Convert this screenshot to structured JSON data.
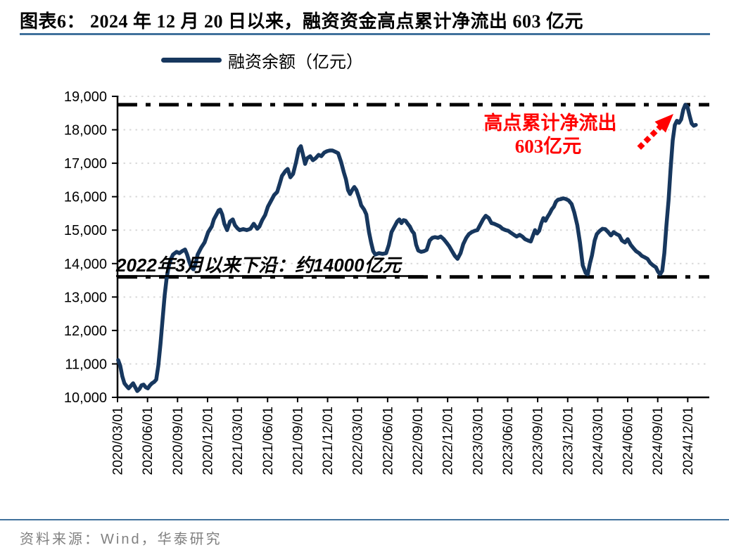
{
  "title": "图表6：  2024 年 12 月 20 日以来，融资资金高点累计净流出 603 亿元",
  "legend": {
    "label": "融资余额（亿元）"
  },
  "annotations": {
    "high_point": {
      "line1": "高点累计净流出",
      "line2": "603亿元"
    },
    "lower_band": {
      "text": "2022年3月以来下沿：约14000亿元"
    }
  },
  "source": {
    "text": "资料来源：Wind，华泰研究"
  },
  "colors": {
    "line": "#17375E",
    "rule": "#41719C",
    "annotation_red": "#FF0000",
    "grid": "#D9D9D9",
    "axis": "#000000",
    "reference_line": "#000000",
    "source_text": "#808080"
  },
  "chart_data": {
    "type": "line",
    "title": "2024年12月20日以来，融资资金高点累计净流出603亿元",
    "series_name": "融资余额（亿元）",
    "unit": "亿元",
    "y_axis": {
      "min": 10000,
      "max": 19000,
      "step": 1000,
      "ticks": [
        10000,
        11000,
        12000,
        13000,
        14000,
        15000,
        16000,
        17000,
        18000,
        19000
      ],
      "tick_labels": [
        "10,000",
        "11,000",
        "12,000",
        "13,000",
        "14,000",
        "15,000",
        "16,000",
        "17,000",
        "18,000",
        "19,000"
      ]
    },
    "x_axis": {
      "tick_labels": [
        "2020/03/01",
        "2020/06/01",
        "2020/09/01",
        "2020/12/01",
        "2021/03/01",
        "2021/06/01",
        "2021/09/01",
        "2021/12/01",
        "2022/03/01",
        "2022/06/01",
        "2022/09/01",
        "2022/12/01",
        "2023/03/01",
        "2023/06/01",
        "2023/09/01",
        "2023/12/01",
        "2024/03/01",
        "2024/06/01",
        "2024/09/01",
        "2024/12/01"
      ]
    },
    "reference_lines": [
      {
        "value": 18750,
        "style": "dash-dot",
        "meaning": "2024年12月20日高点"
      },
      {
        "value": 13600,
        "style": "dash-dot",
        "meaning": "2022年3月以来下沿：约14000亿元"
      }
    ],
    "grid": "horizontal-dotted",
    "legend_position": "top-left",
    "points_format": "[quarters since 2020/03/01, 融资余额(亿元)]",
    "points": [
      [
        0.02,
        11115
      ],
      [
        0.09,
        10950
      ],
      [
        0.16,
        10630
      ],
      [
        0.23,
        10420
      ],
      [
        0.3,
        10340
      ],
      [
        0.37,
        10270
      ],
      [
        0.44,
        10340
      ],
      [
        0.52,
        10420
      ],
      [
        0.59,
        10300
      ],
      [
        0.66,
        10190
      ],
      [
        0.73,
        10250
      ],
      [
        0.8,
        10360
      ],
      [
        0.87,
        10380
      ],
      [
        0.94,
        10300
      ],
      [
        1.01,
        10270
      ],
      [
        1.08,
        10360
      ],
      [
        1.15,
        10420
      ],
      [
        1.22,
        10460
      ],
      [
        1.29,
        10530
      ],
      [
        1.36,
        10950
      ],
      [
        1.43,
        11580
      ],
      [
        1.5,
        12320
      ],
      [
        1.57,
        13050
      ],
      [
        1.64,
        13580
      ],
      [
        1.71,
        13930
      ],
      [
        1.78,
        14140
      ],
      [
        1.85,
        14270
      ],
      [
        1.97,
        14350
      ],
      [
        2.06,
        14310
      ],
      [
        2.15,
        14370
      ],
      [
        2.25,
        14420
      ],
      [
        2.32,
        14270
      ],
      [
        2.39,
        14060
      ],
      [
        2.46,
        13890
      ],
      [
        2.53,
        13830
      ],
      [
        2.6,
        14000
      ],
      [
        2.67,
        14270
      ],
      [
        2.79,
        14480
      ],
      [
        2.9,
        14630
      ],
      [
        3.02,
        14940
      ],
      [
        3.14,
        15110
      ],
      [
        3.21,
        15320
      ],
      [
        3.3,
        15470
      ],
      [
        3.37,
        15590
      ],
      [
        3.42,
        15615
      ],
      [
        3.49,
        15470
      ],
      [
        3.56,
        15190
      ],
      [
        3.65,
        15000
      ],
      [
        3.75,
        15260
      ],
      [
        3.84,
        15320
      ],
      [
        3.91,
        15150
      ],
      [
        4.0,
        15050
      ],
      [
        4.07,
        15000
      ],
      [
        4.19,
        15030
      ],
      [
        4.31,
        15000
      ],
      [
        4.43,
        15040
      ],
      [
        4.54,
        15190
      ],
      [
        4.66,
        15040
      ],
      [
        4.73,
        15110
      ],
      [
        4.82,
        15300
      ],
      [
        4.92,
        15450
      ],
      [
        5.01,
        15700
      ],
      [
        5.13,
        15900
      ],
      [
        5.22,
        16050
      ],
      [
        5.32,
        16140
      ],
      [
        5.41,
        16400
      ],
      [
        5.48,
        16620
      ],
      [
        5.6,
        16770
      ],
      [
        5.67,
        16830
      ],
      [
        5.76,
        16580
      ],
      [
        5.85,
        16680
      ],
      [
        5.95,
        17040
      ],
      [
        6.04,
        17420
      ],
      [
        6.11,
        17510
      ],
      [
        6.18,
        17250
      ],
      [
        6.25,
        16980
      ],
      [
        6.32,
        17150
      ],
      [
        6.42,
        17210
      ],
      [
        6.51,
        17090
      ],
      [
        6.6,
        17150
      ],
      [
        6.7,
        17250
      ],
      [
        6.79,
        17210
      ],
      [
        6.89,
        17320
      ],
      [
        6.98,
        17360
      ],
      [
        7.07,
        17380
      ],
      [
        7.16,
        17380
      ],
      [
        7.26,
        17340
      ],
      [
        7.35,
        17300
      ],
      [
        7.45,
        17040
      ],
      [
        7.54,
        16730
      ],
      [
        7.61,
        16520
      ],
      [
        7.68,
        16200
      ],
      [
        7.75,
        16080
      ],
      [
        7.82,
        16200
      ],
      [
        7.89,
        16290
      ],
      [
        7.96,
        16200
      ],
      [
        8.06,
        15930
      ],
      [
        8.12,
        15740
      ],
      [
        8.22,
        15610
      ],
      [
        8.29,
        15470
      ],
      [
        8.38,
        14940
      ],
      [
        8.45,
        14630
      ],
      [
        8.52,
        14370
      ],
      [
        8.59,
        14270
      ],
      [
        8.71,
        14310
      ],
      [
        8.83,
        14290
      ],
      [
        8.95,
        14310
      ],
      [
        9.04,
        14560
      ],
      [
        9.13,
        14940
      ],
      [
        9.23,
        15110
      ],
      [
        9.32,
        15260
      ],
      [
        9.39,
        15320
      ],
      [
        9.46,
        15210
      ],
      [
        9.53,
        15300
      ],
      [
        9.6,
        15280
      ],
      [
        9.67,
        15190
      ],
      [
        9.74,
        15110
      ],
      [
        9.81,
        14980
      ],
      [
        9.88,
        14900
      ],
      [
        9.95,
        14560
      ],
      [
        10.02,
        14390
      ],
      [
        10.12,
        14350
      ],
      [
        10.21,
        14370
      ],
      [
        10.3,
        14410
      ],
      [
        10.4,
        14690
      ],
      [
        10.49,
        14770
      ],
      [
        10.58,
        14790
      ],
      [
        10.68,
        14770
      ],
      [
        10.77,
        14810
      ],
      [
        10.87,
        14730
      ],
      [
        10.96,
        14630
      ],
      [
        11.05,
        14520
      ],
      [
        11.15,
        14370
      ],
      [
        11.24,
        14230
      ],
      [
        11.33,
        14140
      ],
      [
        11.43,
        14310
      ],
      [
        11.52,
        14580
      ],
      [
        11.62,
        14770
      ],
      [
        11.71,
        14880
      ],
      [
        11.8,
        14940
      ],
      [
        11.9,
        14980
      ],
      [
        11.99,
        15000
      ],
      [
        12.08,
        15150
      ],
      [
        12.18,
        15320
      ],
      [
        12.27,
        15430
      ],
      [
        12.37,
        15360
      ],
      [
        12.46,
        15210
      ],
      [
        12.55,
        15190
      ],
      [
        12.65,
        15150
      ],
      [
        12.74,
        15110
      ],
      [
        12.83,
        15040
      ],
      [
        12.93,
        15000
      ],
      [
        13.02,
        14980
      ],
      [
        13.11,
        14920
      ],
      [
        13.21,
        14860
      ],
      [
        13.3,
        14810
      ],
      [
        13.4,
        14860
      ],
      [
        13.49,
        14810
      ],
      [
        13.58,
        14730
      ],
      [
        13.68,
        14690
      ],
      [
        13.77,
        14660
      ],
      [
        13.84,
        14830
      ],
      [
        13.91,
        15000
      ],
      [
        13.98,
        14900
      ],
      [
        14.05,
        14980
      ],
      [
        14.12,
        15200
      ],
      [
        14.19,
        15360
      ],
      [
        14.26,
        15280
      ],
      [
        14.33,
        15400
      ],
      [
        14.4,
        15500
      ],
      [
        14.47,
        15620
      ],
      [
        14.54,
        15700
      ],
      [
        14.61,
        15850
      ],
      [
        14.68,
        15910
      ],
      [
        14.78,
        15930
      ],
      [
        14.85,
        15950
      ],
      [
        14.94,
        15930
      ],
      [
        15.03,
        15890
      ],
      [
        15.13,
        15780
      ],
      [
        15.22,
        15530
      ],
      [
        15.32,
        15150
      ],
      [
        15.41,
        14630
      ],
      [
        15.5,
        13950
      ],
      [
        15.6,
        13720
      ],
      [
        15.67,
        13680
      ],
      [
        15.74,
        14000
      ],
      [
        15.81,
        14250
      ],
      [
        15.9,
        14690
      ],
      [
        15.97,
        14880
      ],
      [
        16.07,
        14980
      ],
      [
        16.16,
        15040
      ],
      [
        16.25,
        15030
      ],
      [
        16.35,
        14940
      ],
      [
        16.44,
        14840
      ],
      [
        16.53,
        14940
      ],
      [
        16.63,
        14880
      ],
      [
        16.72,
        14840
      ],
      [
        16.81,
        14690
      ],
      [
        16.91,
        14630
      ],
      [
        17.0,
        14730
      ],
      [
        17.1,
        14560
      ],
      [
        17.19,
        14460
      ],
      [
        17.28,
        14370
      ],
      [
        17.38,
        14310
      ],
      [
        17.47,
        14230
      ],
      [
        17.56,
        14190
      ],
      [
        17.66,
        14140
      ],
      [
        17.75,
        14020
      ],
      [
        17.84,
        13950
      ],
      [
        17.94,
        13890
      ],
      [
        18.01,
        13760
      ],
      [
        18.08,
        13680
      ],
      [
        18.15,
        13780
      ],
      [
        18.22,
        14310
      ],
      [
        18.29,
        15150
      ],
      [
        18.36,
        15890
      ],
      [
        18.43,
        16830
      ],
      [
        18.5,
        17680
      ],
      [
        18.57,
        18140
      ],
      [
        18.64,
        18270
      ],
      [
        18.71,
        18210
      ],
      [
        18.78,
        18310
      ],
      [
        18.85,
        18600
      ],
      [
        18.92,
        18750
      ],
      [
        18.99,
        18690
      ],
      [
        19.06,
        18430
      ],
      [
        19.13,
        18190
      ],
      [
        19.2,
        18120
      ],
      [
        19.27,
        18147
      ]
    ]
  }
}
